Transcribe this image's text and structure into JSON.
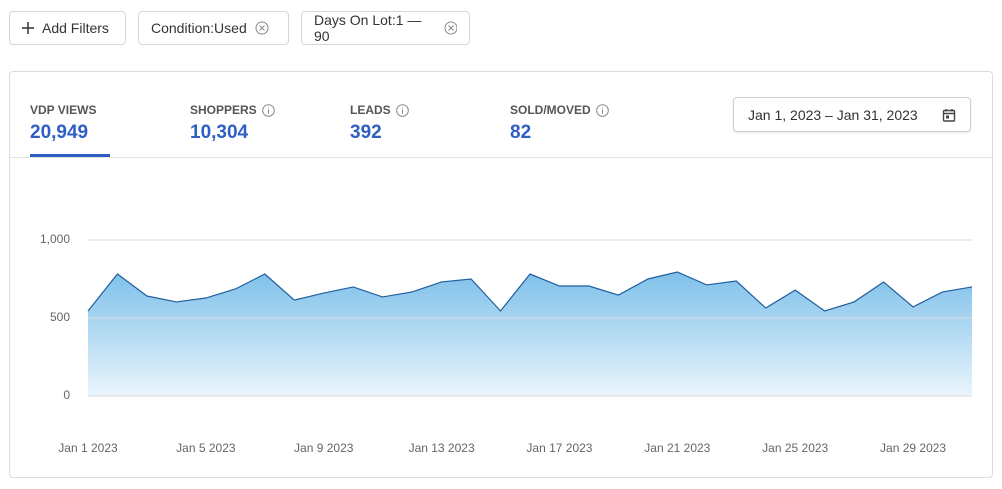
{
  "filters": [
    {
      "label": "Add Filters"
    },
    {
      "label": "Condition:Used"
    },
    {
      "label": "Days On Lot:1 — 90"
    }
  ],
  "metrics": [
    {
      "label": "VDP VIEWS",
      "value": "20,949"
    },
    {
      "label": "SHOPPERS",
      "value": "10,304"
    },
    {
      "label": "LEADS",
      "value": "392"
    },
    {
      "label": "SOLD/MOVED",
      "value": "82"
    }
  ],
  "date_range": "Jan 1, 2023 – Jan 31, 2023",
  "chart_data": {
    "type": "area",
    "categories": [
      "Jan 1 2023",
      null,
      null,
      null,
      "Jan 5 2023",
      null,
      null,
      null,
      "Jan 9 2023",
      null,
      null,
      null,
      "Jan 13 2023",
      null,
      null,
      null,
      "Jan 17 2023",
      null,
      null,
      null,
      "Jan 21 2023",
      null,
      null,
      null,
      "Jan 25 2023",
      null,
      null,
      null,
      "Jan 29 2023",
      null,
      null
    ],
    "values": [
      545,
      782,
      641,
      603,
      628,
      686,
      782,
      615,
      660,
      699,
      635,
      667,
      731,
      750,
      545,
      782,
      705,
      705,
      647,
      750,
      795,
      712,
      737,
      564,
      679,
      545,
      603,
      731,
      571,
      667,
      699
    ],
    "color": "#1f5f9e",
    "ylim": [
      0,
      1000
    ],
    "yticks": [
      0,
      500,
      {
        "value": 1000,
        "label": "1,000"
      }
    ],
    "grid": true
  }
}
